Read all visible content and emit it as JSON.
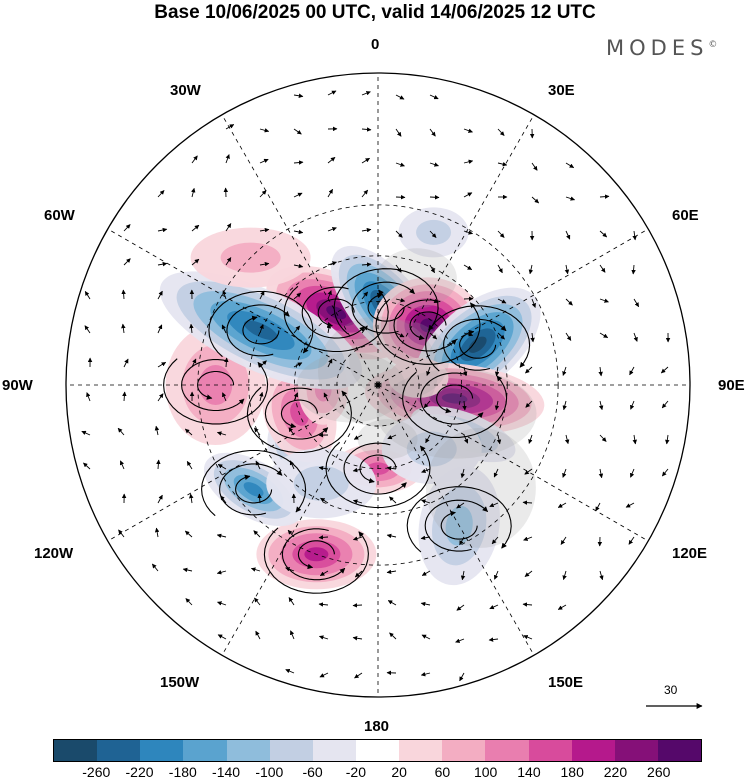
{
  "title": "Base 10/06/2025 00 UTC, valid 14/06/2025 12 UTC",
  "brand": "MODES",
  "brand_mark": "©",
  "longitudes": {
    "lon_0": "0",
    "lon_30e": "30E",
    "lon_60e": "60E",
    "lon_90e": "90E",
    "lon_120e": "120E",
    "lon_150e": "150E",
    "lon_180": "180",
    "lon_150w": "150W",
    "lon_120w": "120W",
    "lon_90w": "90W",
    "lon_60w": "60W",
    "lon_30w": "30W"
  },
  "reference_vector": "30",
  "colorbar": {
    "colors": [
      "#1a4a6b",
      "#1f6394",
      "#2e86bd",
      "#5aa3cf",
      "#8fbddc",
      "#c2cfe3",
      "#e5e5f0",
      "#ffffff",
      "#f9d6dc",
      "#f3adc2",
      "#e97eaf",
      "#d84b9c",
      "#b5198c",
      "#851078",
      "#55086a"
    ],
    "ticks": [
      "-260",
      "-220",
      "-180",
      "-140",
      "-100",
      "-60",
      "-20",
      "20",
      "60",
      "100",
      "140",
      "180",
      "220",
      "260"
    ]
  },
  "anomalies": [
    {
      "lon": -30,
      "lat": 60,
      "value": 260,
      "rx": 75,
      "ry": 38,
      "rot": 25
    },
    {
      "lon": 6,
      "lat": 62,
      "value": -260,
      "rx": 75,
      "ry": 35,
      "rot": 50
    },
    {
      "lon": 40,
      "lat": 62,
      "value": 260,
      "rx": 55,
      "ry": 48,
      "rot": 0
    },
    {
      "lon": 68,
      "lat": 52,
      "value": -260,
      "rx": 75,
      "ry": 40,
      "rot": -40
    },
    {
      "lon": 100,
      "lat": 62,
      "value": 260,
      "rx": 90,
      "ry": 35,
      "rot": 5
    },
    {
      "lon": 120,
      "lat": 55,
      "value": -100,
      "rx": 55,
      "ry": 22,
      "rot": 20
    },
    {
      "lon": 150,
      "lat": 35,
      "value": -100,
      "rx": 40,
      "ry": 60,
      "rot": 10
    },
    {
      "lon": 180,
      "lat": 60,
      "value": 140,
      "rx": 45,
      "ry": 25,
      "rot": 0
    },
    {
      "lon": -160,
      "lat": 30,
      "value": 180,
      "rx": 60,
      "ry": 35,
      "rot": 0
    },
    {
      "lon": -130,
      "lat": 35,
      "value": -180,
      "rx": 55,
      "ry": 28,
      "rot": 30
    },
    {
      "lon": -125,
      "lat": 55,
      "value": -140,
      "rx": 30,
      "ry": 35,
      "rot": 0
    },
    {
      "lon": -110,
      "lat": 60,
      "value": 140,
      "rx": 35,
      "ry": 50,
      "rot": -20
    },
    {
      "lon": -95,
      "lat": 70,
      "value": 100,
      "rx": 25,
      "ry": 35,
      "rot": 0
    },
    {
      "lon": -90,
      "lat": 35,
      "value": 100,
      "rx": 50,
      "ry": 60,
      "rot": 0
    },
    {
      "lon": -65,
      "lat": 45,
      "value": -220,
      "rx": 110,
      "ry": 40,
      "rot": 25
    },
    {
      "lon": 80,
      "lat": 75,
      "value": 20,
      "rx": 30,
      "ry": 20,
      "rot": 0
    },
    {
      "lon": 20,
      "lat": 35,
      "value": -60,
      "rx": 35,
      "ry": 25,
      "rot": 0
    },
    {
      "lon": -150,
      "lat": 50,
      "value": -60,
      "rx": 55,
      "ry": 35,
      "rot": 0
    },
    {
      "lon": 140,
      "lat": 60,
      "value": -60,
      "rx": 50,
      "ry": 35,
      "rot": 0
    },
    {
      "lon": -45,
      "lat": 30,
      "value": 60,
      "rx": 60,
      "ry": 30,
      "rot": 0
    }
  ],
  "vortices": [
    {
      "lon": -30,
      "lat": 60,
      "sense": -1
    },
    {
      "lon": 6,
      "lat": 62,
      "sense": 1
    },
    {
      "lon": 40,
      "lat": 62,
      "sense": -1
    },
    {
      "lon": 68,
      "lat": 52,
      "sense": 1
    },
    {
      "lon": 100,
      "lat": 62,
      "sense": -1
    },
    {
      "lon": 150,
      "lat": 35,
      "sense": 1
    },
    {
      "lon": -160,
      "lat": 30,
      "sense": -1
    },
    {
      "lon": -130,
      "lat": 35,
      "sense": 1
    },
    {
      "lon": -90,
      "lat": 35,
      "sense": -1
    },
    {
      "lon": -65,
      "lat": 45,
      "sense": 1
    },
    {
      "lon": -110,
      "lat": 60,
      "sense": -1
    },
    {
      "lon": 180,
      "lat": 60,
      "sense": -1
    }
  ]
}
